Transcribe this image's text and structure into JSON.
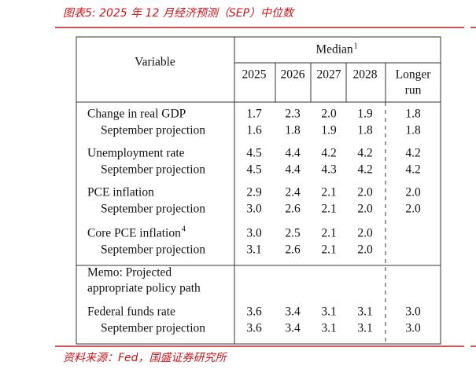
{
  "caption": "图表5: 2025 年 12 月经济预测（SEP）中位数",
  "table": {
    "stub_header": "Variable",
    "group_header": {
      "text": "Median",
      "note": "1"
    },
    "columns": [
      "2025",
      "2026",
      "2027",
      "2028"
    ],
    "longer_run": [
      "Longer",
      "run"
    ],
    "groups": [
      {
        "main": {
          "label": "Change in real GDP",
          "values": [
            "1.7",
            "2.3",
            "2.0",
            "1.9",
            "1.8"
          ]
        },
        "prior": {
          "label": "September projection",
          "values": [
            "1.6",
            "1.8",
            "1.9",
            "1.8",
            "1.8"
          ]
        }
      },
      {
        "main": {
          "label": "Unemployment rate",
          "values": [
            "4.5",
            "4.4",
            "4.2",
            "4.2",
            "4.2"
          ]
        },
        "prior": {
          "label": "September projection",
          "values": [
            "4.5",
            "4.4",
            "4.3",
            "4.2",
            "4.2"
          ]
        }
      },
      {
        "main": {
          "label": "PCE inflation",
          "values": [
            "2.9",
            "2.4",
            "2.1",
            "2.0",
            "2.0"
          ]
        },
        "prior": {
          "label": "September projection",
          "values": [
            "3.0",
            "2.6",
            "2.1",
            "2.0",
            "2.0"
          ]
        }
      },
      {
        "main": {
          "label": "Core PCE inflation",
          "note": "4",
          "values": [
            "3.0",
            "2.5",
            "2.1",
            "2.0"
          ]
        },
        "prior": {
          "label": "September projection",
          "values": [
            "3.1",
            "2.6",
            "2.1",
            "2.0"
          ]
        }
      }
    ],
    "memo": [
      "Memo: Projected",
      "appropriate policy path"
    ],
    "funds": {
      "main": {
        "label": "Federal funds rate",
        "values": [
          "3.6",
          "3.4",
          "3.1",
          "3.1",
          "3.0"
        ]
      },
      "prior": {
        "label": "September projection",
        "values": [
          "3.6",
          "3.4",
          "3.1",
          "3.1",
          "3.0"
        ]
      }
    }
  },
  "source": "资料来源：Fed，国盛证券研究所"
}
